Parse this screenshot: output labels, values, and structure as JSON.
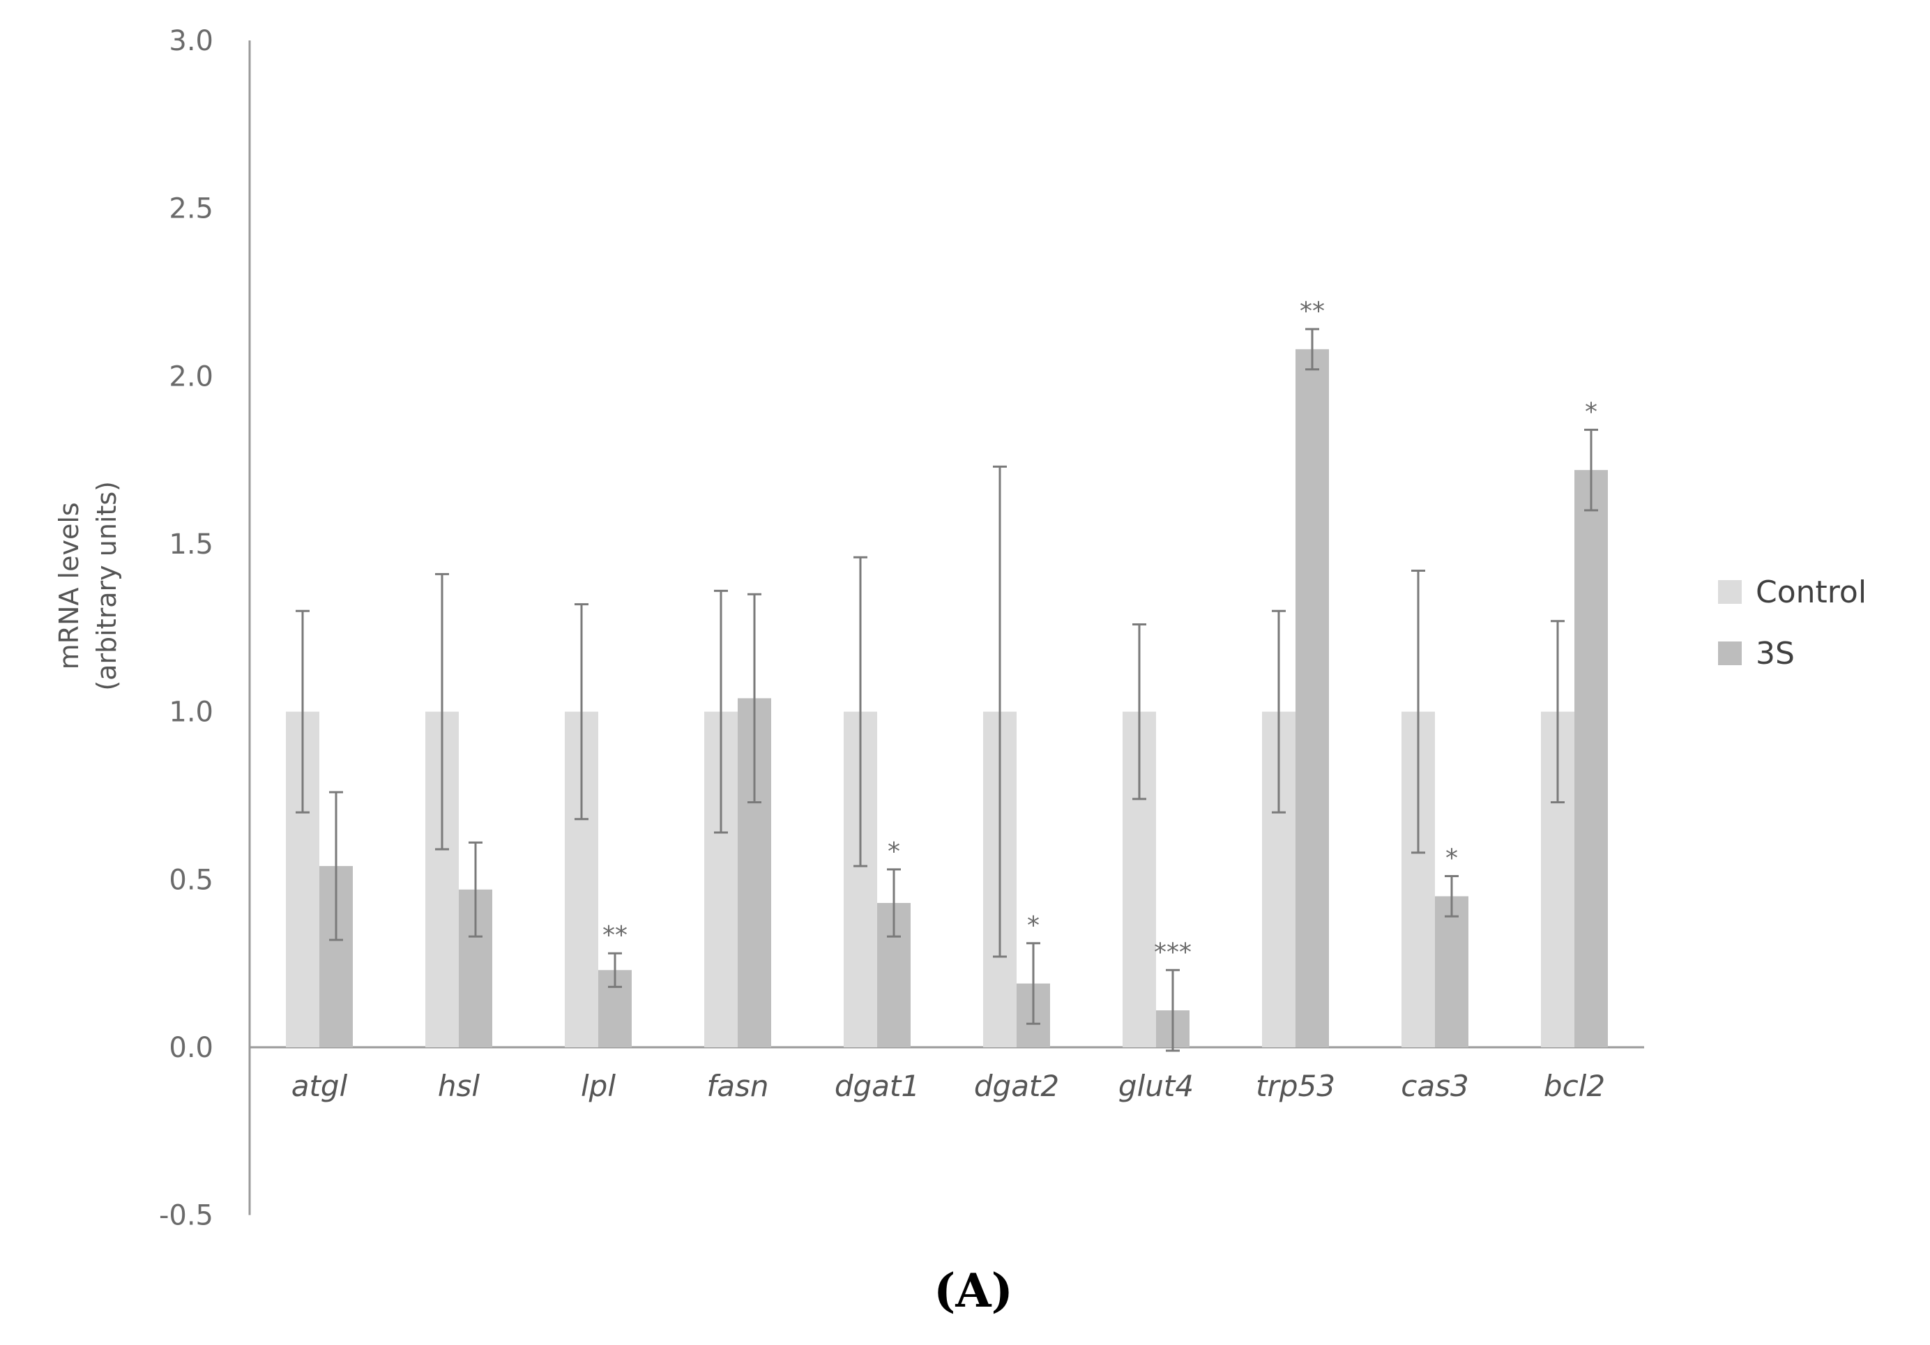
{
  "chart_data": {
    "type": "bar",
    "title": "",
    "panel_label": "(A)",
    "ylabel_lines": [
      "mRNA levels",
      "(arbitrary units)"
    ],
    "xlabel": "",
    "ylim": [
      -0.5,
      3.0
    ],
    "yticks": [
      -0.5,
      0.0,
      0.5,
      1.0,
      1.5,
      2.0,
      2.5,
      3.0
    ],
    "ytick_labels": [
      "-0.5",
      "0.0",
      "0.5",
      "1.0",
      "1.5",
      "2.0",
      "2.5",
      "3.0"
    ],
    "grid": false,
    "legend_position": "right",
    "categories": [
      "atgl",
      "hsl",
      "lpl",
      "fasn",
      "dgat1",
      "dgat2",
      "glut4",
      "trp53",
      "cas3",
      "bcl2"
    ],
    "series": [
      {
        "name": "Control",
        "color": "#dcdcdc",
        "values": [
          1.0,
          1.0,
          1.0,
          1.0,
          1.0,
          1.0,
          1.0,
          1.0,
          1.0,
          1.0
        ],
        "errors": [
          0.3,
          0.41,
          0.32,
          0.36,
          0.46,
          0.73,
          0.26,
          0.3,
          0.42,
          0.27
        ]
      },
      {
        "name": "3S",
        "color": "#bdbdbd",
        "values": [
          0.54,
          0.47,
          0.23,
          1.04,
          0.43,
          0.19,
          0.11,
          2.08,
          0.45,
          1.72
        ],
        "errors": [
          0.22,
          0.14,
          0.05,
          0.31,
          0.1,
          0.12,
          0.12,
          0.06,
          0.06,
          0.12
        ]
      }
    ],
    "significance": [
      "",
      "",
      "**",
      "",
      "*",
      "*",
      "***",
      "**",
      "*",
      "*"
    ]
  }
}
